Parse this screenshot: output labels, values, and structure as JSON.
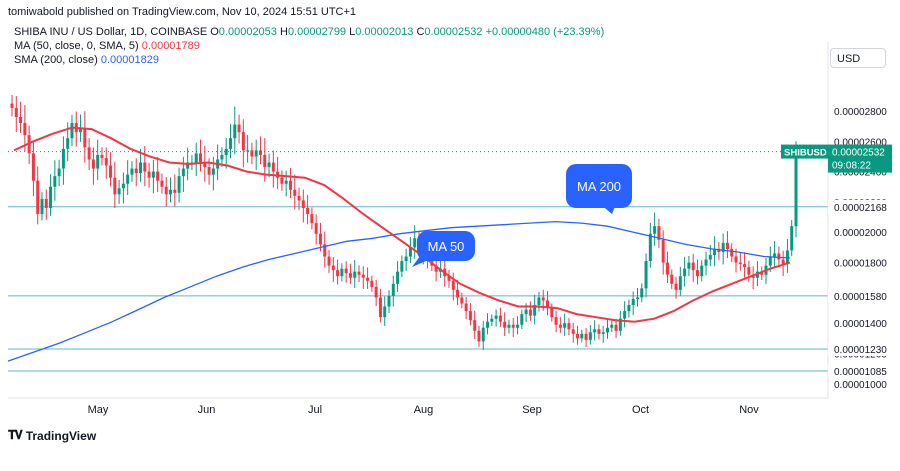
{
  "header": {
    "published": "tomiwabold published on TradingView.com, Nov 10, 2024 15:51 UTC+1",
    "symbol": "SHIBA INU / US Dollar, 1D, COINBASE",
    "open_label": "O",
    "open": "0.00002053",
    "high_label": "H",
    "high": "0.00002799",
    "low_label": "L",
    "low": "0.00002013",
    "close_label": "C",
    "close": "0.00002532",
    "change": "+0.00000480 (+23.39%)",
    "ma_label": "MA (50, close, 0, SMA, 5)",
    "ma_value": "0.00001789",
    "sma_label": "SMA (200, close)",
    "sma_value": "0.00001829"
  },
  "currency_button": "USD",
  "logo_text": "TradingView",
  "colors": {
    "up": "#089981",
    "down": "#f23645",
    "ma50": "#f23645",
    "sma200": "#2962ff",
    "hline": "#5fb8c8",
    "callout": "#2962ff"
  },
  "chart_data": {
    "type": "candlestick",
    "title": "SHIBA INU / US Dollar, 1D, COINBASE",
    "x_ticks": [
      "May",
      "Jun",
      "Jul",
      "Aug",
      "Sep",
      "Oct",
      "Nov"
    ],
    "y_ticks": [
      "0.00002800",
      "0.00002600",
      "0.00002400",
      "0.00002200",
      "0.00002000",
      "0.00001800",
      "0.00001600",
      "0.00001400",
      "0.00001200",
      "0.00001000"
    ],
    "ylim": [
      9.2e-06,
      3.07e-05
    ],
    "horizontal_levels": [
      {
        "value": 2.168e-05,
        "label": "0.00002168"
      },
      {
        "value": 1.58e-05,
        "label": "0.00001580"
      },
      {
        "value": 1.23e-05,
        "label": "0.00001230"
      },
      {
        "value": 1.085e-05,
        "label": "0.00001085"
      }
    ],
    "last_price": {
      "symbol": "SHIBUSD",
      "value": "0.00002532",
      "countdown": "09:08:22"
    },
    "annotations": [
      {
        "text": "MA 50"
      },
      {
        "text": "MA 200"
      }
    ],
    "candles_close": [
      2.82e-05,
      2.76e-05,
      2.72e-05,
      2.64e-05,
      2.52e-05,
      2.34e-05,
      2.12e-05,
      2.22e-05,
      2.16e-05,
      2.3e-05,
      2.37e-05,
      2.42e-05,
      2.55e-05,
      2.62e-05,
      2.72e-05,
      2.66e-05,
      2.68e-05,
      2.56e-05,
      2.48e-05,
      2.42e-05,
      2.51e-05,
      2.49e-05,
      2.44e-05,
      2.36e-05,
      2.25e-05,
      2.29e-05,
      2.32e-05,
      2.38e-05,
      2.42e-05,
      2.39e-05,
      2.46e-05,
      2.4e-05,
      2.36e-05,
      2.4e-05,
      2.34e-05,
      2.3e-05,
      2.25e-05,
      2.28e-05,
      2.26e-05,
      2.37e-05,
      2.42e-05,
      2.46e-05,
      2.46e-05,
      2.52e-05,
      2.46e-05,
      2.43e-05,
      2.38e-05,
      2.42e-05,
      2.48e-05,
      2.51e-05,
      2.55e-05,
      2.62e-05,
      2.71e-05,
      2.66e-05,
      2.54e-05,
      2.54e-05,
      2.5e-05,
      2.54e-05,
      2.51e-05,
      2.43e-05,
      2.46e-05,
      2.4e-05,
      2.36e-05,
      2.32e-05,
      2.34e-05,
      2.28e-05,
      2.24e-05,
      2.21e-05,
      2.16e-05,
      2.12e-05,
      2.06e-05,
      1.99e-05,
      1.92e-05,
      1.84e-05,
      1.78e-05,
      1.75e-05,
      1.71e-05,
      1.76e-05,
      1.73e-05,
      1.7e-05,
      1.74e-05,
      1.72e-05,
      1.7e-05,
      1.68e-05,
      1.64e-05,
      1.57e-05,
      1.44e-05,
      1.51e-05,
      1.58e-05,
      1.66e-05,
      1.74e-05,
      1.81e-05,
      1.84e-05,
      1.9e-05,
      1.96e-05,
      1.94e-05,
      1.87e-05,
      1.82e-05,
      1.78e-05,
      1.74e-05,
      1.76e-05,
      1.71e-05,
      1.68e-05,
      1.62e-05,
      1.57e-05,
      1.53e-05,
      1.48e-05,
      1.42e-05,
      1.35e-05,
      1.28e-05,
      1.37e-05,
      1.41e-05,
      1.43e-05,
      1.45e-05,
      1.41e-05,
      1.37e-05,
      1.39e-05,
      1.37e-05,
      1.39e-05,
      1.46e-05,
      1.49e-05,
      1.45e-05,
      1.52e-05,
      1.57e-05,
      1.55e-05,
      1.5e-05,
      1.44e-05,
      1.39e-05,
      1.37e-05,
      1.4e-05,
      1.36e-05,
      1.33e-05,
      1.3e-05,
      1.33e-05,
      1.29e-05,
      1.34e-05,
      1.36e-05,
      1.33e-05,
      1.34e-05,
      1.37e-05,
      1.39e-05,
      1.35e-05,
      1.43e-05,
      1.48e-05,
      1.52e-05,
      1.56e-05,
      1.57e-05,
      1.63e-05,
      1.81e-05,
      1.99e-05,
      2.04e-05,
      1.95e-05,
      1.8e-05,
      1.72e-05,
      1.66e-05,
      1.62e-05,
      1.71e-05,
      1.76e-05,
      1.8e-05,
      1.75e-05,
      1.71e-05,
      1.78e-05,
      1.82e-05,
      1.85e-05,
      1.89e-05,
      1.87e-05,
      1.93e-05,
      1.89e-05,
      1.84e-05,
      1.8e-05,
      1.79e-05,
      1.77e-05,
      1.72e-05,
      1.7e-05,
      1.74e-05,
      1.72e-05,
      1.78e-05,
      1.84e-05,
      1.86e-05,
      1.82e-05,
      1.79e-05,
      1.88e-05,
      2.04e-05,
      2.53e-05
    ],
    "ma50_series": [
      2.54e-05,
      2.6e-05,
      2.65e-05,
      2.69e-05,
      2.68e-05,
      2.62e-05,
      2.55e-05,
      2.5e-05,
      2.46e-05,
      2.45e-05,
      2.46e-05,
      2.44e-05,
      2.4e-05,
      2.38e-05,
      2.37e-05,
      2.36e-05,
      2.31e-05,
      2.22e-05,
      2.12e-05,
      2.03e-05,
      1.94e-05,
      1.85e-05,
      1.75e-05,
      1.66e-05,
      1.6e-05,
      1.55e-05,
      1.51e-05,
      1.51e-05,
      1.5e-05,
      1.46e-05,
      1.44e-05,
      1.42e-05,
      1.41e-05,
      1.43e-05,
      1.48e-05,
      1.55e-05,
      1.61e-05,
      1.66e-05,
      1.71e-05,
      1.76e-05,
      1.8e-05
    ],
    "sma200_series": [
      1.15e-05,
      1.21e-05,
      1.27e-05,
      1.34e-05,
      1.41e-05,
      1.49e-05,
      1.57e-05,
      1.64e-05,
      1.71e-05,
      1.77e-05,
      1.82e-05,
      1.86e-05,
      1.9e-05,
      1.94e-05,
      1.96e-05,
      1.99e-05,
      2.01e-05,
      2.03e-05,
      2.04e-05,
      2.05e-05,
      2.06e-05,
      2.07e-05,
      2.06e-05,
      2.04e-05,
      2e-05,
      1.96e-05,
      1.92e-05,
      1.89e-05,
      1.87e-05,
      1.84e-05,
      1.83e-05
    ]
  }
}
